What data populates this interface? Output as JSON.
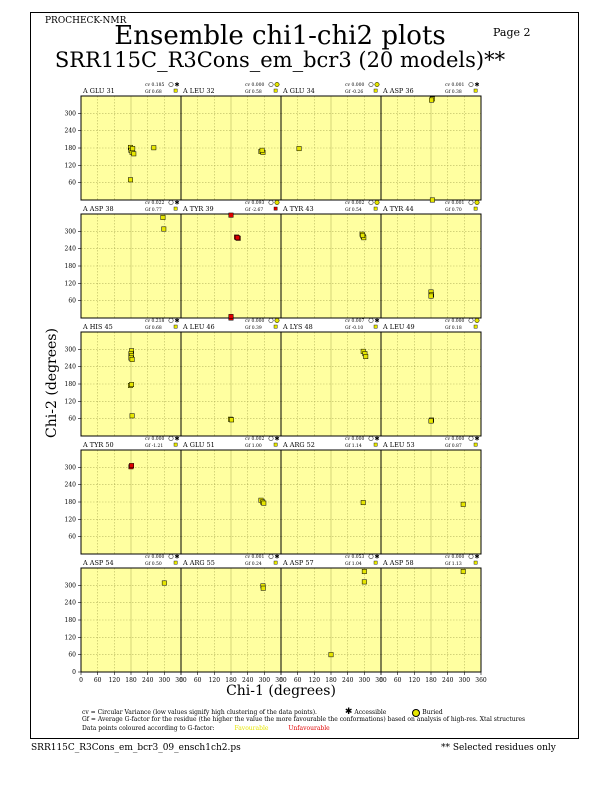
{
  "header": {
    "program": "PROCHECK-NMR",
    "page": "Page  2",
    "title": "Ensemble chi1-chi2 plots",
    "subtitle": "SRR115C_R3Cons_em_bcr3 (20 models)**"
  },
  "footer": {
    "cv_note": "cv = Circular Variance (low values signify high clustering of the data points).",
    "accessible_label": "Accessible",
    "buried_label": "Buried",
    "gf_note": "Gf = Average G-factor for the residue (the higher the value the more favourable the conformations) based on analysis of high-res. Xtal structures",
    "colour_note": "Data points coloured according to G-factor:",
    "favourable_label": "Favourable",
    "unfavourable_label": "Unfavourable",
    "filename": "SRR115C_R3Cons_em_bcr3_09_ensch1ch2.ps",
    "selected_note": "** Selected residues only"
  },
  "colors": {
    "panel_fill": "#ffffa0",
    "grid": "#b8b860",
    "favourable": "#e6e600",
    "unfavourable": "#e00000",
    "frame": "#000000"
  },
  "chart_data": {
    "type": "scatter",
    "xlabel": "Chi-1 (degrees)",
    "ylabel": "Chi-2 (degrees)",
    "xlim": [
      0,
      360
    ],
    "ylim": [
      0,
      360
    ],
    "xticks": [
      0,
      60,
      120,
      180,
      240,
      300,
      360
    ],
    "yticks_rows": [
      [
        60,
        120,
        180,
        240,
        300
      ],
      [
        60,
        120,
        180,
        240,
        300
      ],
      [
        60,
        120,
        180,
        240,
        300
      ],
      [
        60,
        120,
        180,
        240,
        300
      ],
      [
        0,
        60,
        120,
        180,
        240,
        300
      ]
    ],
    "grid": true,
    "panels": [
      {
        "label": "A GLU 31",
        "cv": "cv 0.185",
        "gf": "Gf 0.68",
        "access": "accessible",
        "points": [
          [
            178,
            182,
            "f"
          ],
          [
            180,
            172,
            "f"
          ],
          [
            184,
            165,
            "f"
          ],
          [
            190,
            160,
            "f"
          ],
          [
            186,
            178,
            "f"
          ],
          [
            262,
            181,
            "f"
          ],
          [
            178,
            70,
            "f"
          ]
        ]
      },
      {
        "label": "A LEU 32",
        "cv": "cv 0.000",
        "gf": "Gf 0.58",
        "access": "buried",
        "points": [
          [
            288,
            168,
            "f"
          ],
          [
            295,
            165,
            "f"
          ],
          [
            292,
            172,
            "f"
          ]
        ]
      },
      {
        "label": "A GLU 34",
        "cv": "cv 0.000",
        "gf": "Gf -0.26",
        "access": "buried",
        "points": [
          [
            65,
            178,
            "f"
          ]
        ]
      },
      {
        "label": "A ASP 36",
        "cv": "cv 0.001",
        "gf": "Gf 0.38",
        "access": "accessible",
        "points": [
          [
            185,
            350,
            "f"
          ],
          [
            182,
            346,
            "f"
          ],
          [
            185,
            0,
            "f"
          ]
        ]
      },
      {
        "label": "A ASP 38",
        "cv": "cv 0.022",
        "gf": "Gf 0.77",
        "access": "accessible",
        "points": [
          [
            295,
            348,
            "f"
          ],
          [
            298,
            308,
            "f"
          ]
        ]
      },
      {
        "label": "A TYR 39",
        "cv": "cv 0.093",
        "gf": "Gf -2.67",
        "access": "unfav",
        "points": [
          [
            180,
            356,
            "u"
          ],
          [
            200,
            280,
            "u"
          ],
          [
            206,
            276,
            "u"
          ],
          [
            203,
            278,
            "u"
          ],
          [
            180,
            0,
            "u"
          ],
          [
            180,
            5,
            "u"
          ]
        ]
      },
      {
        "label": "A TYR 43",
        "cv": "cv 0.002",
        "gf": "Gf 0.54",
        "access": "buried",
        "points": [
          [
            292,
            290,
            "f"
          ],
          [
            296,
            282,
            "f"
          ],
          [
            298,
            278,
            "f"
          ],
          [
            294,
            286,
            "f"
          ]
        ]
      },
      {
        "label": "A TYR 44",
        "cv": "cv 0.001",
        "gf": "Gf 0.70",
        "access": "buried",
        "points": [
          [
            180,
            90,
            "f"
          ],
          [
            182,
            80,
            "f"
          ],
          [
            180,
            76,
            "f"
          ]
        ]
      },
      {
        "label": "A HIS 45",
        "cv": "cv 0.218",
        "gf": "Gf 0.68",
        "access": "accessible",
        "points": [
          [
            182,
            295,
            "f"
          ],
          [
            180,
            285,
            "f"
          ],
          [
            182,
            278,
            "f"
          ],
          [
            180,
            270,
            "f"
          ],
          [
            184,
            265,
            "f"
          ],
          [
            178,
            175,
            "f"
          ],
          [
            182,
            178,
            "f"
          ],
          [
            184,
            70,
            "f"
          ]
        ]
      },
      {
        "label": "A LEU 46",
        "cv": "cv 0.000",
        "gf": "Gf 0.39",
        "access": "buried",
        "points": [
          [
            178,
            58,
            "f"
          ],
          [
            182,
            56,
            "f"
          ]
        ]
      },
      {
        "label": "A LYS 48",
        "cv": "cv 0.007",
        "gf": "Gf -0.10",
        "access": "accessible",
        "points": [
          [
            296,
            293,
            "f"
          ],
          [
            302,
            285,
            "f"
          ],
          [
            305,
            275,
            "f"
          ]
        ]
      },
      {
        "label": "A LEU 49",
        "cv": "cv 0.000",
        "gf": "Gf 0.18",
        "access": "buried",
        "points": [
          [
            182,
            55,
            "f"
          ],
          [
            180,
            52,
            "f"
          ]
        ]
      },
      {
        "label": "A TYR 50",
        "cv": "cv 0.000",
        "gf": "Gf -1.21",
        "access": "accessible",
        "points": [
          [
            180,
            302,
            "u"
          ],
          [
            182,
            306,
            "u"
          ]
        ]
      },
      {
        "label": "A GLU 51",
        "cv": "cv 0.002",
        "gf": "Gf 1.00",
        "access": "accessible",
        "points": [
          [
            288,
            186,
            "f"
          ],
          [
            294,
            180,
            "f"
          ],
          [
            298,
            176,
            "f"
          ]
        ]
      },
      {
        "label": "A ARG 52",
        "cv": "cv 0.000",
        "gf": "Gf 1.14",
        "access": "accessible",
        "points": [
          [
            296,
            178,
            "f"
          ]
        ]
      },
      {
        "label": "A LEU 53",
        "cv": "cv 0.000",
        "gf": "Gf 0.87",
        "access": "accessible",
        "points": [
          [
            296,
            172,
            "f"
          ]
        ]
      },
      {
        "label": "A ASP 54",
        "cv": "cv 0.000",
        "gf": "Gf 0.50",
        "access": "accessible",
        "points": [
          [
            300,
            308,
            "f"
          ]
        ]
      },
      {
        "label": "A ARG 55",
        "cv": "cv 0.001",
        "gf": "Gf 0.24",
        "access": "accessible",
        "points": [
          [
            295,
            298,
            "f"
          ],
          [
            296,
            290,
            "f"
          ]
        ]
      },
      {
        "label": "A ASP 57",
        "cv": "cv 0.053",
        "gf": "Gf 1.04",
        "access": "accessible",
        "points": [
          [
            300,
            348,
            "f"
          ],
          [
            300,
            312,
            "f"
          ],
          [
            180,
            60,
            "f"
          ]
        ]
      },
      {
        "label": "A ASP 58",
        "cv": "cv 0.000",
        "gf": "Gf 1.13",
        "access": "accessible",
        "points": [
          [
            296,
            348,
            "f"
          ]
        ]
      }
    ]
  }
}
